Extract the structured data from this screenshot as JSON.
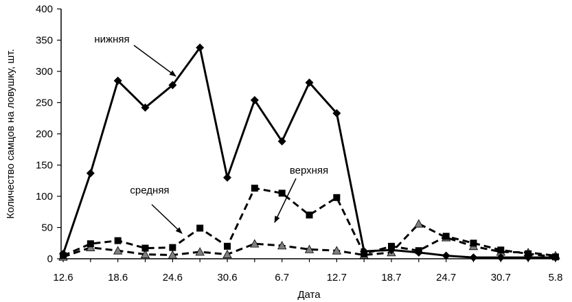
{
  "chart_data": {
    "type": "line",
    "title": "",
    "xlabel": "Дата",
    "ylabel": "Количество самцов на ловушку, шт.",
    "ylim": [
      0,
      400
    ],
    "yticks": [
      0,
      50,
      100,
      150,
      200,
      250,
      300,
      350,
      400
    ],
    "x_tick_labels": [
      "12.6",
      "18.6",
      "24.6",
      "30.6",
      "6.7",
      "12.7",
      "18.7",
      "24.7",
      "30.7",
      "5.8"
    ],
    "x": [
      "12.6",
      "15.6",
      "18.6",
      "21.6",
      "24.6",
      "27.6",
      "30.6",
      "3.7",
      "6.7",
      "9.7",
      "12.7",
      "15.7",
      "18.7",
      "21.7",
      "24.7",
      "27.7",
      "30.7",
      "2.8",
      "5.8"
    ],
    "grid": false,
    "legend": "none",
    "series": [
      {
        "name": "нижняя",
        "style": "solid",
        "marker": "diamond",
        "values": [
          8,
          137,
          285,
          242,
          278,
          338,
          130,
          254,
          188,
          282,
          233,
          12,
          14,
          10,
          5,
          2,
          2,
          2,
          2
        ]
      },
      {
        "name": "средняя",
        "style": "dashed",
        "marker": "square",
        "values": [
          5,
          24,
          29,
          17,
          18,
          49,
          20,
          113,
          105,
          70,
          98,
          8,
          20,
          13,
          36,
          25,
          14,
          8,
          3
        ]
      },
      {
        "name": "верхняя",
        "style": "dashed",
        "marker": "triangle",
        "values": [
          3,
          18,
          13,
          7,
          6,
          11,
          7,
          24,
          21,
          15,
          13,
          6,
          10,
          56,
          34,
          20,
          11,
          10,
          5
        ]
      }
    ],
    "annotations": [
      {
        "text": "нижняя",
        "series": "нижняя"
      },
      {
        "text": "средняя",
        "series": "средняя"
      },
      {
        "text": "верхняя",
        "series": "верхняя"
      }
    ]
  }
}
